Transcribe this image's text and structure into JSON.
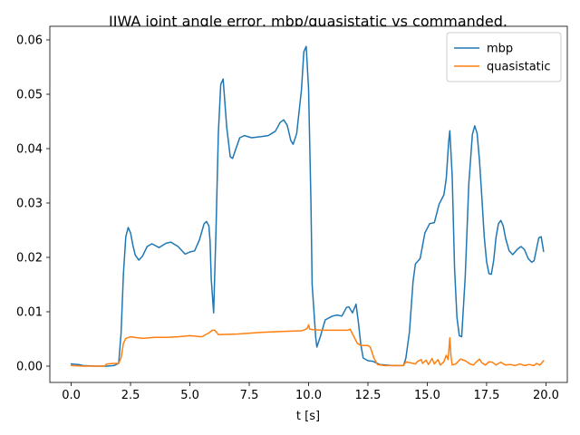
{
  "chart_data": {
    "type": "line",
    "title": "IIWA joint angle error, mbp/quasistatic vs commanded.",
    "xlabel": "t [s]",
    "ylabel": "",
    "xlim": [
      -0.9,
      20.9
    ],
    "ylim": [
      -0.003,
      0.0625
    ],
    "xticks": [
      0.0,
      2.5,
      5.0,
      7.5,
      10.0,
      12.5,
      15.0,
      17.5,
      20.0
    ],
    "xtick_labels": [
      "0.0",
      "2.5",
      "5.0",
      "7.5",
      "10.0",
      "12.5",
      "15.0",
      "17.5",
      "20.0"
    ],
    "yticks": [
      0.0,
      0.01,
      0.02,
      0.03,
      0.04,
      0.05,
      0.06
    ],
    "ytick_labels": [
      "0.00",
      "0.01",
      "0.02",
      "0.03",
      "0.04",
      "0.05",
      "0.06"
    ],
    "grid": false,
    "legend_position": "top-right",
    "series": [
      {
        "name": "mbp",
        "color": "#1f77b4",
        "points": [
          [
            0.0,
            0.0004
          ],
          [
            0.3,
            0.0003
          ],
          [
            0.5,
            0.0001
          ],
          [
            1.0,
            0.0
          ],
          [
            1.5,
            0.0
          ],
          [
            1.8,
            0.0001
          ],
          [
            2.0,
            0.0005
          ],
          [
            2.1,
            0.006
          ],
          [
            2.2,
            0.017
          ],
          [
            2.3,
            0.0238
          ],
          [
            2.4,
            0.0255
          ],
          [
            2.5,
            0.0245
          ],
          [
            2.6,
            0.0222
          ],
          [
            2.7,
            0.0204
          ],
          [
            2.85,
            0.0195
          ],
          [
            3.0,
            0.0202
          ],
          [
            3.2,
            0.022
          ],
          [
            3.4,
            0.0225
          ],
          [
            3.7,
            0.0218
          ],
          [
            4.0,
            0.0226
          ],
          [
            4.2,
            0.0228
          ],
          [
            4.5,
            0.022
          ],
          [
            4.8,
            0.0206
          ],
          [
            5.0,
            0.021
          ],
          [
            5.2,
            0.0212
          ],
          [
            5.4,
            0.0232
          ],
          [
            5.6,
            0.0262
          ],
          [
            5.7,
            0.0266
          ],
          [
            5.8,
            0.0258
          ],
          [
            5.85,
            0.023
          ],
          [
            5.9,
            0.016
          ],
          [
            6.0,
            0.0098
          ],
          [
            6.1,
            0.025
          ],
          [
            6.2,
            0.043
          ],
          [
            6.3,
            0.0518
          ],
          [
            6.4,
            0.0528
          ],
          [
            6.55,
            0.044
          ],
          [
            6.7,
            0.0385
          ],
          [
            6.8,
            0.0382
          ],
          [
            6.9,
            0.0395
          ],
          [
            7.1,
            0.042
          ],
          [
            7.3,
            0.0424
          ],
          [
            7.6,
            0.042
          ],
          [
            8.0,
            0.0422
          ],
          [
            8.3,
            0.0424
          ],
          [
            8.6,
            0.0432
          ],
          [
            8.8,
            0.0448
          ],
          [
            8.95,
            0.0453
          ],
          [
            9.1,
            0.0443
          ],
          [
            9.25,
            0.0415
          ],
          [
            9.35,
            0.0408
          ],
          [
            9.5,
            0.0428
          ],
          [
            9.7,
            0.0508
          ],
          [
            9.8,
            0.0578
          ],
          [
            9.9,
            0.0588
          ],
          [
            10.0,
            0.051
          ],
          [
            10.1,
            0.03
          ],
          [
            10.15,
            0.015
          ],
          [
            10.3,
            0.0053
          ],
          [
            10.35,
            0.0035
          ],
          [
            10.5,
            0.0055
          ],
          [
            10.7,
            0.0085
          ],
          [
            11.0,
            0.0092
          ],
          [
            11.2,
            0.0094
          ],
          [
            11.4,
            0.0092
          ],
          [
            11.6,
            0.0108
          ],
          [
            11.7,
            0.0109
          ],
          [
            11.85,
            0.0098
          ],
          [
            12.0,
            0.0114
          ],
          [
            12.1,
            0.008
          ],
          [
            12.2,
            0.004
          ],
          [
            12.3,
            0.0015
          ],
          [
            12.5,
            0.001
          ],
          [
            12.7,
            0.0009
          ],
          [
            13.0,
            0.0003
          ],
          [
            13.5,
            0.0001
          ],
          [
            14.0,
            0.0001
          ],
          [
            14.1,
            0.0015
          ],
          [
            14.25,
            0.0063
          ],
          [
            14.4,
            0.0155
          ],
          [
            14.5,
            0.0188
          ],
          [
            14.7,
            0.0198
          ],
          [
            14.9,
            0.0245
          ],
          [
            15.1,
            0.0262
          ],
          [
            15.3,
            0.0264
          ],
          [
            15.5,
            0.0298
          ],
          [
            15.7,
            0.0315
          ],
          [
            15.8,
            0.0345
          ],
          [
            15.9,
            0.0412
          ],
          [
            15.95,
            0.0433
          ],
          [
            16.05,
            0.035
          ],
          [
            16.15,
            0.018
          ],
          [
            16.25,
            0.009
          ],
          [
            16.35,
            0.0056
          ],
          [
            16.45,
            0.0054
          ],
          [
            16.6,
            0.0165
          ],
          [
            16.75,
            0.0335
          ],
          [
            16.9,
            0.0426
          ],
          [
            17.0,
            0.0442
          ],
          [
            17.1,
            0.0428
          ],
          [
            17.2,
            0.0378
          ],
          [
            17.3,
            0.031
          ],
          [
            17.4,
            0.0238
          ],
          [
            17.5,
            0.0192
          ],
          [
            17.6,
            0.017
          ],
          [
            17.7,
            0.0169
          ],
          [
            17.8,
            0.0195
          ],
          [
            17.9,
            0.0238
          ],
          [
            18.0,
            0.0262
          ],
          [
            18.1,
            0.0268
          ],
          [
            18.2,
            0.0258
          ],
          [
            18.3,
            0.0235
          ],
          [
            18.45,
            0.0212
          ],
          [
            18.6,
            0.0205
          ],
          [
            18.8,
            0.0215
          ],
          [
            18.95,
            0.022
          ],
          [
            19.1,
            0.0214
          ],
          [
            19.25,
            0.0198
          ],
          [
            19.4,
            0.0191
          ],
          [
            19.5,
            0.0194
          ],
          [
            19.6,
            0.0215
          ],
          [
            19.7,
            0.0236
          ],
          [
            19.8,
            0.0238
          ],
          [
            19.9,
            0.0211
          ]
        ]
      },
      {
        "name": "quasistatic",
        "color": "#ff7f0e",
        "points": [
          [
            0.0,
            0.0001
          ],
          [
            0.5,
            0.0
          ],
          [
            1.0,
            0.0
          ],
          [
            1.4,
            0.0
          ],
          [
            1.5,
            0.0004
          ],
          [
            1.8,
            0.0005
          ],
          [
            2.0,
            0.0005
          ],
          [
            2.1,
            0.0015
          ],
          [
            2.2,
            0.0042
          ],
          [
            2.3,
            0.0051
          ],
          [
            2.5,
            0.0054
          ],
          [
            2.8,
            0.0052
          ],
          [
            3.0,
            0.0051
          ],
          [
            3.5,
            0.0053
          ],
          [
            4.0,
            0.0053
          ],
          [
            4.5,
            0.0054
          ],
          [
            5.0,
            0.0056
          ],
          [
            5.5,
            0.0054
          ],
          [
            5.8,
            0.0061
          ],
          [
            5.95,
            0.0066
          ],
          [
            6.05,
            0.0066
          ],
          [
            6.2,
            0.0058
          ],
          [
            7.0,
            0.0059
          ],
          [
            8.0,
            0.0062
          ],
          [
            9.0,
            0.0064
          ],
          [
            9.7,
            0.0065
          ],
          [
            9.85,
            0.0067
          ],
          [
            9.95,
            0.007
          ],
          [
            10.0,
            0.0076
          ],
          [
            10.05,
            0.0068
          ],
          [
            10.2,
            0.0067
          ],
          [
            10.6,
            0.0066
          ],
          [
            11.0,
            0.0066
          ],
          [
            11.5,
            0.0066
          ],
          [
            11.65,
            0.0066
          ],
          [
            11.75,
            0.0068
          ],
          [
            11.9,
            0.0055
          ],
          [
            12.05,
            0.0042
          ],
          [
            12.2,
            0.0038
          ],
          [
            12.5,
            0.0038
          ],
          [
            12.6,
            0.0035
          ],
          [
            12.75,
            0.0015
          ],
          [
            12.9,
            0.0003
          ],
          [
            13.2,
            0.0001
          ],
          [
            14.0,
            0.0001
          ],
          [
            14.1,
            0.0008
          ],
          [
            14.3,
            0.0006
          ],
          [
            14.5,
            0.0004
          ],
          [
            14.6,
            0.0009
          ],
          [
            14.75,
            0.0012
          ],
          [
            14.8,
            0.0005
          ],
          [
            14.95,
            0.0011
          ],
          [
            15.05,
            0.0003
          ],
          [
            15.2,
            0.0014
          ],
          [
            15.3,
            0.0004
          ],
          [
            15.45,
            0.0012
          ],
          [
            15.55,
            0.0002
          ],
          [
            15.7,
            0.0008
          ],
          [
            15.8,
            0.002
          ],
          [
            15.88,
            0.0012
          ],
          [
            15.95,
            0.0052
          ],
          [
            16.0,
            0.0018
          ],
          [
            16.05,
            0.0002
          ],
          [
            16.2,
            0.0004
          ],
          [
            16.4,
            0.0013
          ],
          [
            16.6,
            0.001
          ],
          [
            16.8,
            0.0004
          ],
          [
            16.95,
            0.0002
          ],
          [
            17.05,
            0.0007
          ],
          [
            17.2,
            0.0013
          ],
          [
            17.3,
            0.0006
          ],
          [
            17.45,
            0.0002
          ],
          [
            17.6,
            0.0008
          ],
          [
            17.75,
            0.0007
          ],
          [
            17.9,
            0.0002
          ],
          [
            18.0,
            0.0005
          ],
          [
            18.1,
            0.0007
          ],
          [
            18.3,
            0.0002
          ],
          [
            18.5,
            0.0003
          ],
          [
            18.7,
            0.0001
          ],
          [
            18.9,
            0.0004
          ],
          [
            19.1,
            0.0001
          ],
          [
            19.3,
            0.0003
          ],
          [
            19.5,
            0.0001
          ],
          [
            19.6,
            0.0005
          ],
          [
            19.75,
            0.0002
          ],
          [
            19.9,
            0.001
          ]
        ]
      }
    ]
  }
}
